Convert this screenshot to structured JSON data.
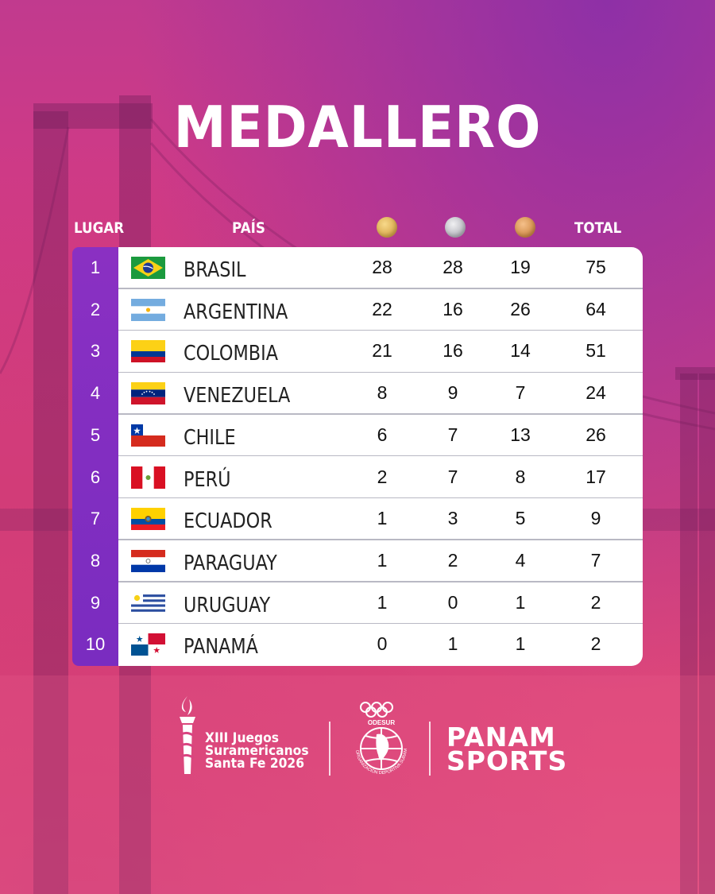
{
  "title": "MEDALLERO",
  "headers": {
    "rank": "LUGAR",
    "country": "PAÍS",
    "gold_icon": "gold-medal-icon",
    "silver_icon": "silver-medal-icon",
    "bronze_icon": "bronze-medal-icon",
    "total": "TOTAL"
  },
  "rows": [
    {
      "rank": "1",
      "country": "BRASIL",
      "flag": "brazil-flag-icon",
      "gold": "28",
      "silver": "28",
      "bronze": "19",
      "total": "75"
    },
    {
      "rank": "2",
      "country": "ARGENTINA",
      "flag": "argentina-flag-icon",
      "gold": "22",
      "silver": "16",
      "bronze": "26",
      "total": "64"
    },
    {
      "rank": "3",
      "country": "COLOMBIA",
      "flag": "colombia-flag-icon",
      "gold": "21",
      "silver": "16",
      "bronze": "14",
      "total": "51"
    },
    {
      "rank": "4",
      "country": "VENEZUELA",
      "flag": "venezuela-flag-icon",
      "gold": "8",
      "silver": "9",
      "bronze": "7",
      "total": "24"
    },
    {
      "rank": "5",
      "country": "CHILE",
      "flag": "chile-flag-icon",
      "gold": "6",
      "silver": "7",
      "bronze": "13",
      "total": "26"
    },
    {
      "rank": "6",
      "country": "PERÚ",
      "flag": "peru-flag-icon",
      "gold": "2",
      "silver": "7",
      "bronze": "8",
      "total": "17"
    },
    {
      "rank": "7",
      "country": "ECUADOR",
      "flag": "ecuador-flag-icon",
      "gold": "1",
      "silver": "3",
      "bronze": "5",
      "total": "9"
    },
    {
      "rank": "8",
      "country": "PARAGUAY",
      "flag": "paraguay-flag-icon",
      "gold": "1",
      "silver": "2",
      "bronze": "4",
      "total": "7"
    },
    {
      "rank": "9",
      "country": "URUGUAY",
      "flag": "uruguay-flag-icon",
      "gold": "1",
      "silver": "0",
      "bronze": "1",
      "total": "2"
    },
    {
      "rank": "10",
      "country": "PANAMÁ",
      "flag": "panama-flag-icon",
      "gold": "0",
      "silver": "1",
      "bronze": "1",
      "total": "2"
    }
  ],
  "footer": {
    "games_line1": "XIII Juegos",
    "games_line2": "Suramericanos",
    "games_line3": "Santa Fe 2026",
    "odesur_name": "ODESUR",
    "odesur_ring_text": "ORGANIZACIÓN DEPORTIVA SURAMERICANA",
    "panam_line1": "PANAM",
    "panam_line2": "SPORTS"
  },
  "colors": {
    "rank_column": "#7a2cc0",
    "background_top": "#b0359c",
    "background_bottom": "#e04f80"
  }
}
